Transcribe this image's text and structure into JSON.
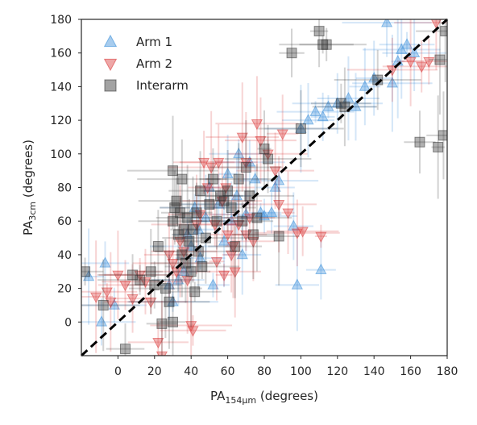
{
  "chart_data": {
    "type": "scatter",
    "xlabel": {
      "main": "PA",
      "sub": "154μm",
      "unit": " (degrees)"
    },
    "ylabel": {
      "main": "PA",
      "sub": "3cm",
      "unit": " (degrees)"
    },
    "xlim": [
      -20,
      180
    ],
    "ylim": [
      -20,
      180
    ],
    "xticks": [
      0,
      20,
      40,
      60,
      80,
      100,
      120,
      140,
      160,
      180
    ],
    "yticks": [
      0,
      20,
      40,
      60,
      80,
      100,
      120,
      140,
      160,
      180
    ],
    "xtick_labels": [
      "0",
      "20",
      "40",
      "60",
      "80",
      "100",
      "120",
      "140",
      "160",
      "180"
    ],
    "ytick_labels": [
      "0",
      "20",
      "40",
      "60",
      "80",
      "100",
      "120",
      "140",
      "160",
      "180"
    ],
    "grid": false,
    "legend_position": "top-left",
    "reference_line": {
      "style": "dashed",
      "color": "#000000",
      "from": [
        -20,
        -20
      ],
      "to": [
        180,
        180
      ]
    },
    "series": [
      {
        "name": "Arm 1",
        "marker": "triangle-up",
        "color": "#3b8fd9",
        "points": [
          [
            -16,
            27
          ],
          [
            -7,
            35
          ],
          [
            -9,
            0
          ],
          [
            -2,
            10
          ],
          [
            28,
            22
          ],
          [
            33,
            25
          ],
          [
            36,
            30
          ],
          [
            40,
            45
          ],
          [
            44,
            55
          ],
          [
            48,
            62
          ],
          [
            52,
            22
          ],
          [
            55,
            70
          ],
          [
            58,
            48
          ],
          [
            62,
            60
          ],
          [
            65,
            75
          ],
          [
            68,
            40
          ],
          [
            70,
            64
          ],
          [
            72,
            95
          ],
          [
            75,
            85
          ],
          [
            78,
            65
          ],
          [
            80,
            63
          ],
          [
            84,
            65
          ],
          [
            86,
            80
          ],
          [
            88,
            84
          ],
          [
            96,
            57
          ],
          [
            98,
            22
          ],
          [
            100,
            115
          ],
          [
            104,
            120
          ],
          [
            108,
            125
          ],
          [
            111,
            31
          ],
          [
            112,
            122
          ],
          [
            115,
            128
          ],
          [
            120,
            130
          ],
          [
            126,
            133
          ],
          [
            130,
            128
          ],
          [
            135,
            140
          ],
          [
            140,
            145
          ],
          [
            147,
            178
          ],
          [
            150,
            142
          ],
          [
            153,
            155
          ],
          [
            155,
            162
          ],
          [
            158,
            165
          ],
          [
            162,
            160
          ],
          [
            50,
            80
          ],
          [
            45,
            38
          ],
          [
            60,
            88
          ],
          [
            66,
            100
          ],
          [
            38,
            52
          ],
          [
            42,
            68
          ],
          [
            30,
            12
          ]
        ]
      },
      {
        "name": "Arm 2",
        "marker": "triangle-down",
        "color": "#d93b3b",
        "points": [
          [
            -12,
            15
          ],
          [
            -6,
            18
          ],
          [
            -4,
            12
          ],
          [
            0,
            28
          ],
          [
            4,
            22
          ],
          [
            8,
            14
          ],
          [
            12,
            28
          ],
          [
            15,
            24
          ],
          [
            18,
            12
          ],
          [
            22,
            -12
          ],
          [
            24,
            -20
          ],
          [
            28,
            40
          ],
          [
            30,
            35
          ],
          [
            32,
            30
          ],
          [
            34,
            48
          ],
          [
            36,
            42
          ],
          [
            38,
            25
          ],
          [
            40,
            -2
          ],
          [
            41,
            -5
          ],
          [
            43,
            58
          ],
          [
            45,
            64
          ],
          [
            47,
            95
          ],
          [
            49,
            80
          ],
          [
            51,
            92
          ],
          [
            53,
            58
          ],
          [
            55,
            95
          ],
          [
            57,
            72
          ],
          [
            59,
            80
          ],
          [
            60,
            52
          ],
          [
            62,
            40
          ],
          [
            64,
            30
          ],
          [
            66,
            58
          ],
          [
            68,
            110
          ],
          [
            70,
            95
          ],
          [
            72,
            62
          ],
          [
            74,
            48
          ],
          [
            76,
            118
          ],
          [
            78,
            108
          ],
          [
            82,
            100
          ],
          [
            86,
            90
          ],
          [
            88,
            70
          ],
          [
            90,
            112
          ],
          [
            93,
            65
          ],
          [
            98,
            53
          ],
          [
            101,
            54
          ],
          [
            111,
            51
          ],
          [
            150,
            150
          ],
          [
            160,
            155
          ],
          [
            166,
            152
          ],
          [
            170,
            155
          ],
          [
            174,
            178
          ],
          [
            54,
            36
          ],
          [
            58,
            28
          ],
          [
            63,
            45
          ],
          [
            70,
            52
          ]
        ]
      },
      {
        "name": "Interarm",
        "marker": "square",
        "color": "#333333",
        "points": [
          [
            -18,
            30
          ],
          [
            -8,
            10
          ],
          [
            4,
            -16
          ],
          [
            8,
            28
          ],
          [
            12,
            25
          ],
          [
            18,
            30
          ],
          [
            20,
            22
          ],
          [
            22,
            45
          ],
          [
            24,
            -1
          ],
          [
            26,
            20
          ],
          [
            28,
            12
          ],
          [
            30,
            0
          ],
          [
            30,
            60
          ],
          [
            31,
            68
          ],
          [
            32,
            72
          ],
          [
            33,
            52
          ],
          [
            34,
            65
          ],
          [
            35,
            40
          ],
          [
            36,
            55
          ],
          [
            37,
            35
          ],
          [
            38,
            62
          ],
          [
            39,
            48
          ],
          [
            40,
            30
          ],
          [
            41,
            55
          ],
          [
            42,
            18
          ],
          [
            43,
            65
          ],
          [
            44,
            42
          ],
          [
            45,
            78
          ],
          [
            46,
            33
          ],
          [
            48,
            50
          ],
          [
            50,
            70
          ],
          [
            52,
            85
          ],
          [
            54,
            60
          ],
          [
            56,
            75
          ],
          [
            58,
            72
          ],
          [
            60,
            78
          ],
          [
            62,
            68
          ],
          [
            64,
            45
          ],
          [
            66,
            85
          ],
          [
            68,
            60
          ],
          [
            70,
            92
          ],
          [
            72,
            75
          ],
          [
            74,
            52
          ],
          [
            76,
            62
          ],
          [
            80,
            103
          ],
          [
            82,
            97
          ],
          [
            88,
            51
          ],
          [
            95,
            160
          ],
          [
            100,
            115
          ],
          [
            110,
            173
          ],
          [
            112,
            165
          ],
          [
            114,
            165
          ],
          [
            122,
            130
          ],
          [
            124,
            128
          ],
          [
            142,
            144
          ],
          [
            165,
            107
          ],
          [
            175,
            104
          ],
          [
            176,
            156
          ],
          [
            178,
            111
          ],
          [
            179,
            173
          ],
          [
            30,
            90
          ],
          [
            35,
            85
          ]
        ]
      }
    ]
  }
}
